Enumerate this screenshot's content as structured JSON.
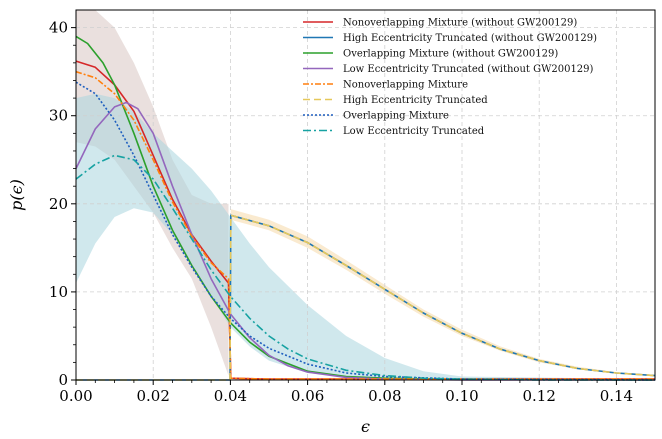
{
  "chart_data": {
    "type": "line",
    "xlabel": "ϵ",
    "ylabel": "p(ϵ)",
    "xlim": [
      0.0,
      0.15
    ],
    "ylim": [
      0,
      42
    ],
    "xticks": [
      "0.00",
      "0.02",
      "0.04",
      "0.06",
      "0.08",
      "0.10",
      "0.12",
      "0.14"
    ],
    "yticks": [
      "0",
      "10",
      "20",
      "30",
      "40"
    ],
    "grid": true,
    "legend_position": "top-right",
    "series": [
      {
        "name": "Nonoverlapping Mixture (without GW200129)",
        "color": "#d62728",
        "dash": "solid",
        "x": [
          0,
          0.005,
          0.01,
          0.015,
          0.02,
          0.025,
          0.03,
          0.035,
          0.0395,
          0.0401,
          0.05,
          0.06,
          0.08,
          0.1,
          0.15
        ],
        "y": [
          36.2,
          35.5,
          33.5,
          30.5,
          25.5,
          20.5,
          16.5,
          13.5,
          11.0,
          0.2,
          0.1,
          0.1,
          0.1,
          0.1,
          0.1
        ]
      },
      {
        "name": "High Eccentricity Truncated (without GW200129)",
        "color": "#1f77b4",
        "dash": "solid",
        "x": [
          0,
          0.0399,
          0.0401,
          0.05,
          0.06,
          0.07,
          0.08,
          0.09,
          0.1,
          0.11,
          0.12,
          0.13,
          0.14,
          0.15
        ],
        "y": [
          0.0,
          0.0,
          18.7,
          17.5,
          15.6,
          13.0,
          10.3,
          7.6,
          5.3,
          3.5,
          2.2,
          1.3,
          0.8,
          0.5
        ]
      },
      {
        "name": "Overlapping Mixture (without GW200129)",
        "color": "#2ca02c",
        "dash": "solid",
        "x": [
          0,
          0.003,
          0.007,
          0.01,
          0.015,
          0.02,
          0.025,
          0.03,
          0.035,
          0.04,
          0.045,
          0.05,
          0.06,
          0.07,
          0.08,
          0.1,
          0.15
        ],
        "y": [
          39.0,
          38.2,
          36.0,
          33.5,
          28.0,
          22.0,
          17.0,
          13.0,
          9.5,
          6.5,
          4.3,
          2.7,
          1.0,
          0.4,
          0.2,
          0.05,
          0.0
        ]
      },
      {
        "name": "Low Eccentricity Truncated (without GW200129)",
        "color": "#9467bd",
        "dash": "solid",
        "x": [
          0,
          0.005,
          0.01,
          0.013,
          0.016,
          0.02,
          0.025,
          0.03,
          0.035,
          0.04,
          0.045,
          0.05,
          0.055,
          0.06,
          0.07,
          0.08,
          0.1,
          0.15
        ],
        "y": [
          24.0,
          28.5,
          31.0,
          31.5,
          30.8,
          28.0,
          22.0,
          16.5,
          11.5,
          7.5,
          4.8,
          2.8,
          1.6,
          0.9,
          0.3,
          0.1,
          0.0,
          0.0
        ]
      },
      {
        "name": "Nonoverlapping Mixture",
        "color": "#ff7f0e",
        "dash": "6 2 2 2",
        "x": [
          0,
          0.005,
          0.01,
          0.015,
          0.02,
          0.025,
          0.03,
          0.035,
          0.0395,
          0.0401,
          0.05,
          0.1,
          0.15
        ],
        "y": [
          35.0,
          34.3,
          32.5,
          29.5,
          25.0,
          20.2,
          16.3,
          13.3,
          11.5,
          0.2,
          0.1,
          0.1,
          0.1
        ]
      },
      {
        "name": "High Eccentricity Truncated",
        "color": "#e6c85a",
        "dash": "7 4",
        "x": [
          0,
          0.0399,
          0.0401,
          0.05,
          0.06,
          0.07,
          0.08,
          0.09,
          0.1,
          0.11,
          0.12,
          0.13,
          0.14,
          0.15
        ],
        "y": [
          0.0,
          0.0,
          18.7,
          17.5,
          15.6,
          13.0,
          10.3,
          7.6,
          5.3,
          3.5,
          2.2,
          1.3,
          0.8,
          0.5
        ]
      },
      {
        "name": "Overlapping Mixture",
        "color": "#1f5fbf",
        "dash": "2 2",
        "x": [
          0,
          0.005,
          0.01,
          0.015,
          0.02,
          0.025,
          0.03,
          0.035,
          0.04,
          0.045,
          0.05,
          0.06,
          0.07,
          0.08,
          0.1,
          0.15
        ],
        "y": [
          33.8,
          32.5,
          29.5,
          25.5,
          21.0,
          16.5,
          12.8,
          9.5,
          7.0,
          5.0,
          3.6,
          1.8,
          0.8,
          0.4,
          0.1,
          0.0
        ]
      },
      {
        "name": "Low Eccentricity Truncated",
        "color": "#17a2a2",
        "dash": "8 3 2 3",
        "x": [
          0,
          0.005,
          0.01,
          0.015,
          0.02,
          0.025,
          0.03,
          0.035,
          0.04,
          0.045,
          0.05,
          0.055,
          0.06,
          0.07,
          0.08,
          0.09,
          0.1,
          0.12,
          0.15
        ],
        "y": [
          22.8,
          24.5,
          25.5,
          25.0,
          22.8,
          19.5,
          16.0,
          12.5,
          9.5,
          7.0,
          5.0,
          3.5,
          2.4,
          1.1,
          0.5,
          0.2,
          0.1,
          0.0,
          0.0
        ]
      }
    ],
    "bands": [
      {
        "color": "#d9c7c2",
        "opacity": 0.55,
        "x": [
          0,
          0.005,
          0.01,
          0.015,
          0.02,
          0.025,
          0.03,
          0.035,
          0.0395
        ],
        "lower": [
          27.0,
          26.5,
          25.0,
          22.0,
          19.0,
          15.0,
          11.5,
          6.0,
          0.5
        ],
        "upper": [
          42.0,
          42.0,
          40.0,
          36.0,
          31.0,
          25.0,
          21.0,
          20.0,
          20.0
        ]
      },
      {
        "color": "#f5d9a8",
        "opacity": 0.55,
        "x": [
          0.0401,
          0.05,
          0.06,
          0.07,
          0.08,
          0.09,
          0.1,
          0.11,
          0.12,
          0.13,
          0.14,
          0.15
        ],
        "lower": [
          18.2,
          17.0,
          15.0,
          12.5,
          9.8,
          7.2,
          5.0,
          3.3,
          2.0,
          1.2,
          0.7,
          0.4
        ],
        "upper": [
          19.4,
          18.2,
          16.3,
          13.6,
          10.8,
          8.0,
          5.7,
          3.8,
          2.4,
          1.5,
          0.9,
          0.6
        ]
      },
      {
        "color": "#a9d6df",
        "opacity": 0.55,
        "x": [
          0,
          0.005,
          0.01,
          0.015,
          0.02,
          0.025,
          0.03,
          0.035,
          0.04,
          0.045,
          0.05,
          0.06,
          0.07,
          0.08,
          0.09,
          0.1,
          0.15
        ],
        "lower": [
          11.0,
          15.5,
          18.5,
          19.5,
          19.0,
          16.5,
          13.0,
          9.5,
          6.0,
          3.8,
          2.2,
          0.8,
          0.3,
          0.1,
          0.0,
          0.0,
          0.0
        ],
        "upper": [
          32.0,
          32.5,
          32.0,
          30.5,
          28.0,
          26.0,
          24.0,
          21.5,
          18.5,
          15.5,
          12.8,
          8.5,
          5.0,
          2.5,
          1.0,
          0.4,
          0.1
        ]
      }
    ]
  }
}
